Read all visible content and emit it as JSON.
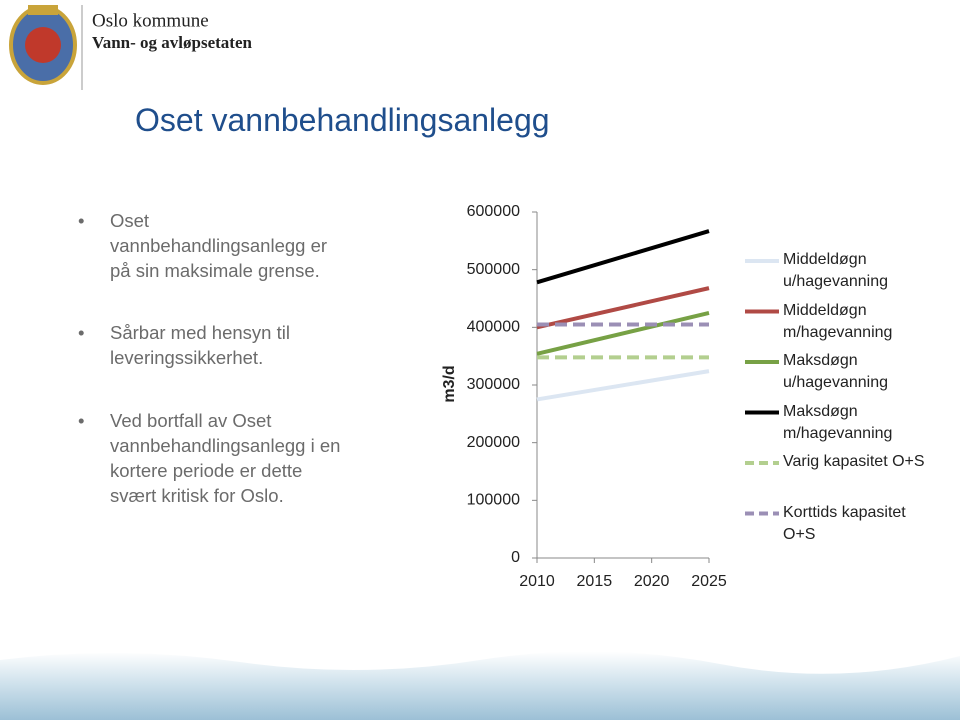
{
  "header": {
    "organization": "Oslo kommune",
    "department": "Vann- og avløpsetaten"
  },
  "title": "Oset vannbehandlingsanlegg",
  "bullets": [
    "Oset vannbehandlingsanlegg er på sin maksimale grense.",
    "Sårbar med hensyn til leveringssikkerhet.",
    "Ved bortfall av Oset vannbehandlingsanlegg i en kortere periode er dette svært kritisk for Oslo."
  ],
  "chart_data": {
    "type": "line",
    "y_label": "m3/d",
    "x": [
      2010,
      2025
    ],
    "xlim": [
      2010,
      2025
    ],
    "xticks": [
      2010,
      2015,
      2020,
      2025
    ],
    "ylim": [
      0,
      600000
    ],
    "yticks": [
      0,
      100000,
      200000,
      300000,
      400000,
      500000,
      600000
    ],
    "grid": false,
    "legend": "right",
    "series": [
      {
        "name": "Middeldøgn u/hagevanning",
        "color": "#dce6f2",
        "style": "solid",
        "values": [
          275000,
          324000
        ]
      },
      {
        "name": "Middeldøgn m/hagevanning",
        "color": "#b04a45",
        "style": "solid",
        "values": [
          400000,
          468000
        ]
      },
      {
        "name": "Maksdøgn u/hagevanning",
        "color": "#77a145",
        "style": "solid",
        "values": [
          354000,
          425000
        ]
      },
      {
        "name": "Maksdøgn m/hagevanning",
        "color": "#000000",
        "style": "solid",
        "values": [
          478000,
          567000
        ]
      },
      {
        "name": "Varig kapasitet O+S",
        "color": "#b3cf8f",
        "style": "dashed",
        "values": [
          348000,
          348000
        ]
      },
      {
        "name": "Korttids kapasitet O+S",
        "color": "#9b8fb5",
        "style": "dashed",
        "values": [
          405000,
          405000
        ]
      }
    ]
  }
}
